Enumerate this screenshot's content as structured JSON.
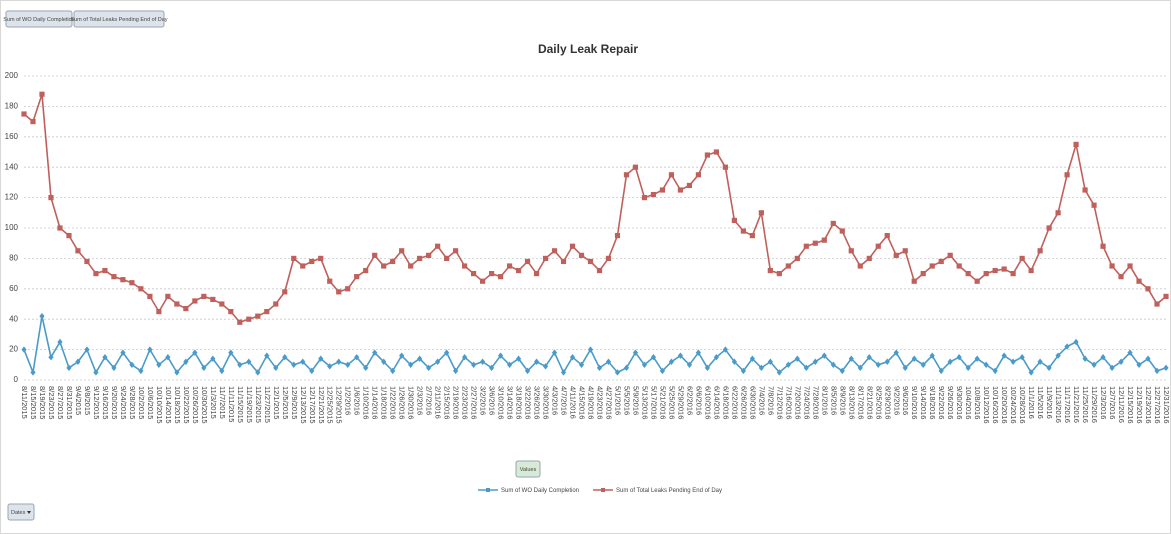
{
  "chart_data": {
    "type": "line",
    "title": "Daily Leak Repair",
    "values_button": "Values",
    "axis_field": "Dates",
    "ylim": [
      0,
      200
    ],
    "yticks": [
      0,
      20,
      40,
      60,
      80,
      100,
      120,
      140,
      160,
      180,
      200
    ],
    "grid": true,
    "legend": "bottom",
    "categories": [
      "8/11/2015",
      "8/15/2015",
      "8/19/2015",
      "8/23/2015",
      "8/27/2015",
      "8/31/2015",
      "9/4/2015",
      "9/8/2015",
      "9/12/2015",
      "9/16/2015",
      "9/20/2015",
      "9/24/2015",
      "9/28/2015",
      "10/2/2015",
      "10/6/2015",
      "10/10/2015",
      "10/14/2015",
      "10/18/2015",
      "10/22/2015",
      "10/26/2015",
      "10/30/2015",
      "11/3/2015",
      "11/7/2015",
      "11/11/2015",
      "11/15/2015",
      "11/19/2015",
      "11/23/2015",
      "11/27/2015",
      "12/1/2015",
      "12/5/2015",
      "12/9/2015",
      "12/13/2015",
      "12/17/2015",
      "12/21/2015",
      "12/25/2015",
      "12/29/2015",
      "1/2/2016",
      "1/6/2016",
      "1/10/2016",
      "1/14/2016",
      "1/18/2016",
      "1/22/2016",
      "1/26/2016",
      "1/30/2016",
      "2/3/2016",
      "2/7/2016",
      "2/11/2016",
      "2/15/2016",
      "2/19/2016",
      "2/23/2016",
      "2/27/2016",
      "3/2/2016",
      "3/6/2016",
      "3/10/2016",
      "3/14/2016",
      "3/18/2016",
      "3/22/2016",
      "3/26/2016",
      "3/30/2016",
      "4/3/2016",
      "4/7/2016",
      "4/11/2016",
      "4/15/2016",
      "4/19/2016",
      "4/23/2016",
      "4/27/2016",
      "5/1/2016",
      "5/5/2016",
      "5/9/2016",
      "5/13/2016",
      "5/17/2016",
      "5/21/2016",
      "5/25/2016",
      "5/29/2016",
      "6/2/2016",
      "6/6/2016",
      "6/10/2016",
      "6/14/2016",
      "6/18/2016",
      "6/22/2016",
      "6/26/2016",
      "6/30/2016",
      "7/4/2016",
      "7/8/2016",
      "7/12/2016",
      "7/16/2016",
      "7/20/2016",
      "7/24/2016",
      "7/28/2016",
      "8/1/2016",
      "8/5/2016",
      "8/9/2016",
      "8/13/2016",
      "8/17/2016",
      "8/21/2016",
      "8/25/2016",
      "8/29/2016",
      "9/2/2016",
      "9/6/2016",
      "9/10/2016",
      "9/14/2016",
      "9/18/2016",
      "9/22/2016",
      "9/26/2016",
      "9/30/2016",
      "10/4/2016",
      "10/8/2016",
      "10/12/2016",
      "10/16/2016",
      "10/20/2016",
      "10/24/2016",
      "10/28/2016",
      "11/1/2016",
      "11/5/2016",
      "11/9/2016",
      "11/13/2016",
      "11/17/2016",
      "11/21/2016",
      "11/25/2016",
      "11/29/2016",
      "12/3/2016",
      "12/7/2016",
      "12/11/2016",
      "12/15/2016",
      "12/19/2016",
      "12/23/2016",
      "12/27/2016",
      "12/31/2016"
    ],
    "series": [
      {
        "name": "Sum of WO Daily Completion",
        "color": "#4a9bc9",
        "marker": "diamond",
        "values": [
          20,
          5,
          42,
          15,
          25,
          8,
          12,
          20,
          5,
          15,
          8,
          18,
          10,
          6,
          20,
          10,
          15,
          5,
          12,
          18,
          8,
          14,
          6,
          18,
          10,
          12,
          5,
          16,
          8,
          15,
          10,
          12,
          6,
          14,
          9,
          12,
          10,
          15,
          8,
          18,
          12,
          6,
          16,
          10,
          14,
          8,
          12,
          18,
          6,
          15,
          10,
          12,
          8,
          16,
          10,
          14,
          6,
          12,
          9,
          18,
          5,
          15,
          10,
          20,
          8,
          12,
          5,
          8,
          18,
          10,
          15,
          6,
          12,
          16,
          10,
          18,
          8,
          15,
          20,
          12,
          6,
          14,
          8,
          12,
          5,
          10,
          14,
          8,
          12,
          16,
          10,
          6,
          14,
          8,
          15,
          10,
          12,
          18,
          8,
          14,
          10,
          16,
          6,
          12,
          15,
          8,
          14,
          10,
          6,
          16,
          12,
          15,
          5,
          12,
          8,
          16,
          22,
          25,
          14,
          10,
          15,
          8,
          12,
          18,
          10,
          14,
          6,
          8
        ]
      },
      {
        "name": "Sum of Total Leaks Pending End of Day",
        "color": "#c0605c",
        "marker": "square",
        "values": [
          175,
          170,
          188,
          120,
          100,
          95,
          85,
          78,
          70,
          72,
          68,
          66,
          64,
          60,
          55,
          45,
          55,
          50,
          47,
          52,
          55,
          53,
          50,
          45,
          38,
          40,
          42,
          45,
          50,
          58,
          80,
          75,
          78,
          80,
          65,
          58,
          60,
          68,
          72,
          82,
          75,
          78,
          85,
          75,
          80,
          82,
          88,
          80,
          85,
          75,
          70,
          65,
          70,
          68,
          75,
          72,
          78,
          70,
          80,
          85,
          78,
          88,
          82,
          78,
          72,
          80,
          95,
          135,
          140,
          120,
          122,
          125,
          135,
          125,
          128,
          135,
          148,
          150,
          140,
          105,
          98,
          95,
          110,
          72,
          70,
          75,
          80,
          88,
          90,
          92,
          103,
          98,
          85,
          75,
          80,
          88,
          95,
          82,
          85,
          65,
          70,
          75,
          78,
          82,
          75,
          70,
          65,
          70,
          72,
          73,
          70,
          80,
          72,
          85,
          100,
          110,
          135,
          155,
          125,
          115,
          88,
          75,
          68,
          75,
          65,
          60,
          50,
          55
        ]
      }
    ]
  }
}
